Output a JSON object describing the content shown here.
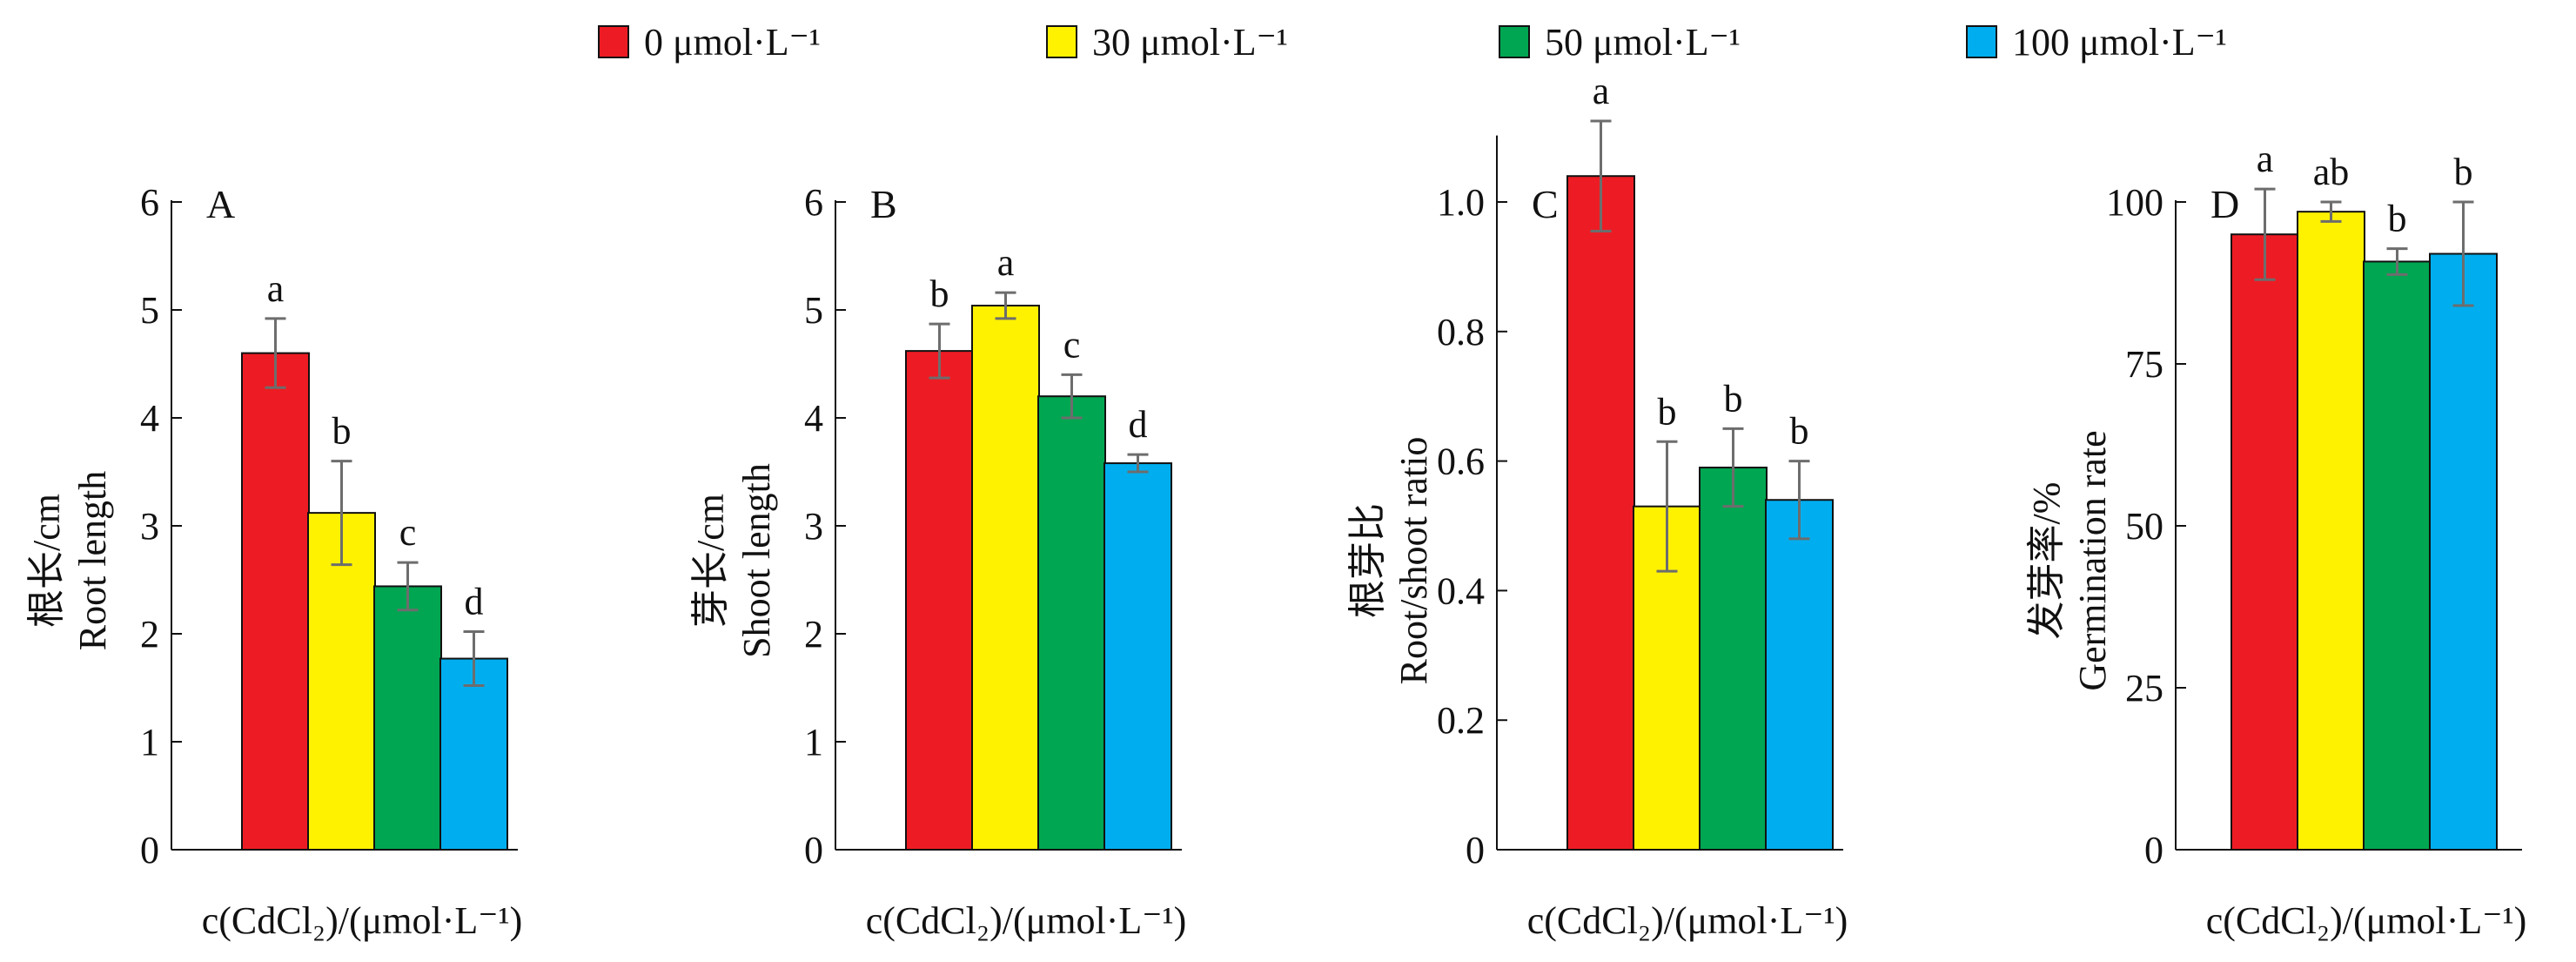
{
  "legend": [
    {
      "label": "0 μmol·L⁻¹",
      "color": "#ed1c24"
    },
    {
      "label": "30 μmol·L⁻¹",
      "color": "#fff200"
    },
    {
      "label": "50 μmol·L⁻¹",
      "color": "#00a651"
    },
    {
      "label": "100 μmol·L⁻¹",
      "color": "#00aeef"
    }
  ],
  "colors": {
    "axis": "#111111",
    "error_bar": "#6d6d6d",
    "bar_border": "#111111"
  },
  "chart_data": [
    {
      "type": "bar",
      "panel": "A",
      "ylabel_cn": "根长/cm",
      "ylabel_en": "Root length",
      "xlabel": "c(CdCl₂)/(μmol·L⁻¹)",
      "ylim": [
        0,
        6
      ],
      "yticks": [
        0,
        1,
        2,
        3,
        4,
        5,
        6
      ],
      "tick_labels": [
        "0",
        "1",
        "2",
        "3",
        "4",
        "5",
        "6"
      ],
      "categories": [
        "0",
        "30",
        "50",
        "100"
      ],
      "values": [
        4.6,
        3.12,
        2.44,
        1.77
      ],
      "errors": [
        0.32,
        0.48,
        0.22,
        0.25
      ],
      "sig": [
        "a",
        "b",
        "c",
        "d"
      ]
    },
    {
      "type": "bar",
      "panel": "B",
      "ylabel_cn": "芽长/cm",
      "ylabel_en": "Shoot length",
      "xlabel": "c(CdCl₂)/(μmol·L⁻¹)",
      "ylim": [
        0,
        6
      ],
      "yticks": [
        0,
        1,
        2,
        3,
        4,
        5,
        6
      ],
      "tick_labels": [
        "0",
        "1",
        "2",
        "3",
        "4",
        "5",
        "6"
      ],
      "categories": [
        "0",
        "30",
        "50",
        "100"
      ],
      "values": [
        4.62,
        5.04,
        4.2,
        3.58
      ],
      "errors": [
        0.25,
        0.12,
        0.2,
        0.08
      ],
      "sig": [
        "b",
        "a",
        "c",
        "d"
      ]
    },
    {
      "type": "bar",
      "panel": "C",
      "ylabel_cn": "根芽比",
      "ylabel_en": "Root/shoot ratio",
      "xlabel": "c(CdCl₂)/(μmol·L⁻¹)",
      "ylim": [
        0,
        1.1
      ],
      "yticks": [
        0,
        0.2,
        0.4,
        0.6,
        0.8,
        1.0
      ],
      "tick_labels": [
        "0",
        "0.2",
        "0.4",
        "0.6",
        "0.8",
        "1.0"
      ],
      "categories": [
        "0",
        "30",
        "50",
        "100"
      ],
      "values": [
        1.04,
        0.53,
        0.59,
        0.54
      ],
      "errors": [
        0.085,
        0.1,
        0.06,
        0.06
      ],
      "sig": [
        "a",
        "b",
        "b",
        "b"
      ]
    },
    {
      "type": "bar",
      "panel": "D",
      "ylabel_cn": "发芽率/%",
      "ylabel_en": "Germination rate",
      "xlabel": "c(CdCl₂)/(μmol·L⁻¹)",
      "ylim": [
        0,
        100
      ],
      "yticks": [
        0,
        25,
        50,
        75,
        100
      ],
      "tick_labels": [
        "0",
        "25",
        "50",
        "75",
        "100"
      ],
      "categories": [
        "0",
        "30",
        "50",
        "100"
      ],
      "values": [
        95,
        98.5,
        90.8,
        92
      ],
      "errors": [
        7,
        1.5,
        2,
        8
      ],
      "sig": [
        "a",
        "ab",
        "b",
        "b"
      ]
    }
  ]
}
